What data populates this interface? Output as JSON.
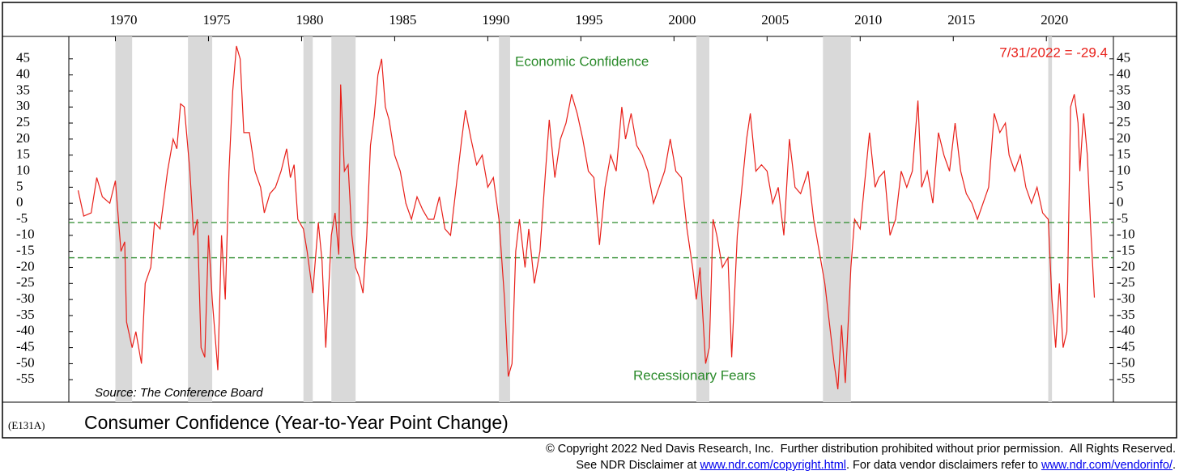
{
  "chart_data": {
    "type": "line",
    "title": "Consumer Confidence (Year-to-Year Point Change)",
    "code": "(E131A)",
    "source": "Source: The Conference Board",
    "annotations": {
      "last_value": "7/31/2022 = -29.4",
      "upper": "Economic Confidence",
      "lower": "Recessionary Fears"
    },
    "color": "#e8201a",
    "reference_lines": [
      -6,
      -17
    ],
    "reference_color": "#2a8a2a",
    "recession_color": "#d9d9d9",
    "recessions": [
      [
        1970.0,
        1970.9
      ],
      [
        1973.9,
        1975.2
      ],
      [
        1980.1,
        1980.6
      ],
      [
        1981.6,
        1982.9
      ],
      [
        1990.6,
        1991.2
      ],
      [
        2001.2,
        2001.9
      ],
      [
        2008.0,
        2009.5
      ],
      [
        2020.1,
        2020.3
      ]
    ],
    "xlim": [
      1967.5,
      2023.6
    ],
    "xticks": [
      1970,
      1975,
      1980,
      1985,
      1990,
      1995,
      2000,
      2005,
      2010,
      2015,
      2020
    ],
    "ylim": [
      -62,
      52
    ],
    "yticks": [
      45,
      40,
      35,
      30,
      25,
      20,
      15,
      10,
      5,
      0,
      -5,
      -10,
      -15,
      -20,
      -25,
      -30,
      -35,
      -40,
      -45,
      -50,
      -55
    ],
    "x": [
      1968.0,
      1968.3,
      1968.7,
      1969.0,
      1969.3,
      1969.7,
      1970.0,
      1970.3,
      1970.5,
      1970.6,
      1970.9,
      1971.1,
      1971.4,
      1971.6,
      1971.9,
      1972.1,
      1972.4,
      1972.8,
      1973.1,
      1973.3,
      1973.5,
      1973.7,
      1974.0,
      1974.2,
      1974.4,
      1974.6,
      1974.8,
      1975.0,
      1975.2,
      1975.5,
      1975.7,
      1975.9,
      1976.1,
      1976.3,
      1976.5,
      1976.7,
      1976.9,
      1977.2,
      1977.5,
      1977.8,
      1978.0,
      1978.3,
      1978.6,
      1978.9,
      1979.2,
      1979.4,
      1979.6,
      1979.8,
      1980.1,
      1980.3,
      1980.6,
      1980.9,
      1981.1,
      1981.3,
      1981.6,
      1981.8,
      1982.0,
      1982.1,
      1982.3,
      1982.5,
      1982.7,
      1982.9,
      1983.1,
      1983.3,
      1983.5,
      1983.7,
      1983.9,
      1984.1,
      1984.3,
      1984.5,
      1984.7,
      1985.0,
      1985.3,
      1985.6,
      1985.9,
      1986.2,
      1986.5,
      1986.8,
      1987.1,
      1987.4,
      1987.7,
      1988.0,
      1988.3,
      1988.6,
      1988.8,
      1989.1,
      1989.4,
      1989.7,
      1990.0,
      1990.3,
      1990.6,
      1990.9,
      1991.1,
      1991.3,
      1991.5,
      1991.7,
      1992.0,
      1992.2,
      1992.5,
      1992.8,
      1993.1,
      1993.3,
      1993.6,
      1993.9,
      1994.2,
      1994.5,
      1994.8,
      1995.1,
      1995.4,
      1995.7,
      1996.0,
      1996.3,
      1996.6,
      1996.9,
      1997.2,
      1997.4,
      1997.7,
      1998.0,
      1998.3,
      1998.6,
      1998.9,
      1999.2,
      1999.5,
      1999.8,
      2000.1,
      2000.4,
      2000.7,
      2001.0,
      2001.2,
      2001.4,
      2001.7,
      2001.9,
      2002.1,
      2002.3,
      2002.6,
      2002.9,
      2003.1,
      2003.4,
      2003.7,
      2003.9,
      2004.1,
      2004.4,
      2004.7,
      2005.0,
      2005.3,
      2005.6,
      2005.9,
      2006.2,
      2006.5,
      2006.8,
      2007.2,
      2007.5,
      2007.8,
      2008.1,
      2008.4,
      2008.6,
      2008.8,
      2009.0,
      2009.2,
      2009.5,
      2009.7,
      2010.0,
      2010.3,
      2010.5,
      2010.8,
      2011.0,
      2011.3,
      2011.6,
      2011.9,
      2012.2,
      2012.5,
      2012.8,
      2013.1,
      2013.3,
      2013.6,
      2013.9,
      2014.2,
      2014.5,
      2014.8,
      2015.1,
      2015.4,
      2015.7,
      2016.0,
      2016.3,
      2016.6,
      2016.9,
      2017.2,
      2017.5,
      2017.8,
      2018.0,
      2018.3,
      2018.6,
      2018.9,
      2019.2,
      2019.5,
      2019.8,
      2020.1,
      2020.3,
      2020.5,
      2020.7,
      2020.9,
      2021.1,
      2021.3,
      2021.5,
      2021.7,
      2021.8,
      2022.0,
      2022.2,
      2022.4,
      2022.58
    ],
    "values": [
      4,
      -4,
      -3,
      8,
      2,
      0,
      7,
      -15,
      -12,
      -37,
      -45,
      -40,
      -50,
      -25,
      -20,
      -6,
      -8,
      10,
      20,
      17,
      31,
      30,
      10,
      -10,
      -5,
      -45,
      -48,
      -10,
      -30,
      -52,
      -10,
      -30,
      10,
      35,
      49,
      45,
      22,
      22,
      10,
      5,
      -3,
      3,
      5,
      10,
      17,
      8,
      12,
      -5,
      -8,
      -15,
      -28,
      -6,
      -18,
      -45,
      -10,
      -3,
      -16,
      37,
      10,
      12,
      -10,
      -20,
      -23,
      -28,
      -10,
      18,
      27,
      40,
      45,
      30,
      26,
      15,
      10,
      0,
      -5,
      2,
      -2,
      -5,
      -5,
      2,
      -8,
      -10,
      5,
      20,
      29,
      20,
      12,
      15,
      5,
      8,
      -5,
      -30,
      -54,
      -50,
      -15,
      -5,
      -20,
      -8,
      -25,
      -15,
      10,
      26,
      8,
      20,
      25,
      34,
      28,
      20,
      10,
      8,
      -13,
      5,
      15,
      10,
      30,
      20,
      28,
      18,
      15,
      10,
      0,
      5,
      10,
      20,
      10,
      8,
      -8,
      -20,
      -30,
      -20,
      -50,
      -45,
      -5,
      -10,
      -20,
      -17,
      -48,
      -10,
      8,
      20,
      28,
      10,
      12,
      10,
      0,
      5,
      -10,
      20,
      5,
      3,
      10,
      -5,
      -15,
      -25,
      -40,
      -50,
      -58,
      -38,
      -56,
      -20,
      -5,
      -8,
      10,
      22,
      5,
      8,
      10,
      -10,
      -5,
      10,
      5,
      10,
      32,
      5,
      10,
      0,
      22,
      15,
      10,
      25,
      10,
      3,
      0,
      -5,
      0,
      5,
      28,
      22,
      25,
      15,
      10,
      15,
      5,
      0,
      5,
      -3,
      -5,
      -30,
      -45,
      -25,
      -45,
      -40,
      30,
      34,
      25,
      10,
      28,
      15,
      -10,
      -29.4
    ]
  },
  "footer": {
    "copyright": "© Copyright 2022 Ned Davis Research, Inc.  Further distribution prohibited without prior permission.  All Rights Reserved.",
    "see": "See NDR Disclaimer at",
    "link1": "www.ndr.com/copyright.html",
    "mid": ". For data vendor disclaimers refer to",
    "link2": "www.ndr.com/vendorinfo/",
    "end": "."
  }
}
